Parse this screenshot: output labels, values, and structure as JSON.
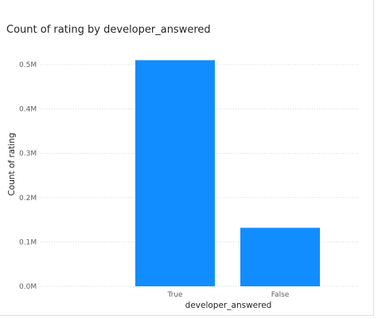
{
  "chart_data": {
    "type": "bar",
    "title": "Count of rating by developer_answered",
    "xlabel": "developer_answered",
    "ylabel": "Count of rating",
    "categories": [
      "True",
      "False"
    ],
    "values": [
      510000,
      132000
    ],
    "yticks": [
      "0.0M",
      "0.1M",
      "0.2M",
      "0.3M",
      "0.4M",
      "0.5M"
    ],
    "ylim": [
      0,
      500000
    ],
    "grid": true,
    "bar_color": "#118DFF",
    "grid_color": "#d9d9d9"
  }
}
